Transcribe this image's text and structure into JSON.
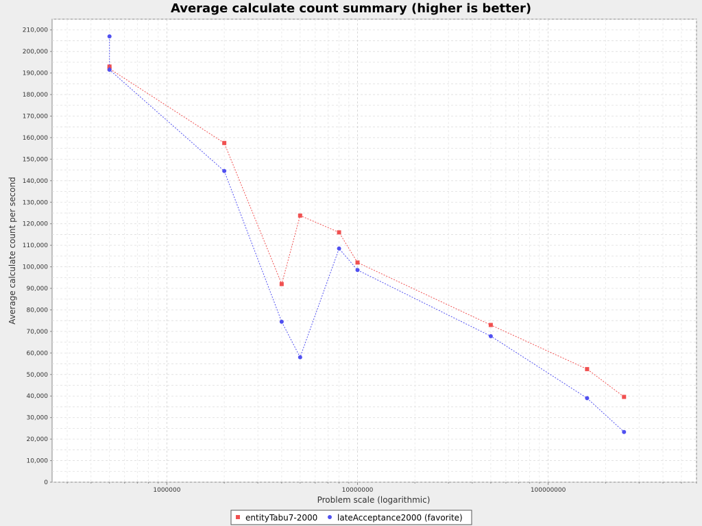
{
  "chart_data": {
    "type": "line",
    "title": "Average calculate count summary (higher is better)",
    "xlabel": "Problem scale (logarithmic)",
    "ylabel": "Average calculate count per second",
    "x_scale": "log",
    "xlim": [
      250000,
      600000000
    ],
    "ylim": [
      0,
      215000
    ],
    "x_ticks": [
      1000000,
      10000000,
      100000000
    ],
    "x_tick_labels": [
      "1000000",
      "10000000",
      "100000000"
    ],
    "y_ticks": [
      0,
      10000,
      20000,
      30000,
      40000,
      50000,
      60000,
      70000,
      80000,
      90000,
      100000,
      110000,
      120000,
      130000,
      140000,
      150000,
      160000,
      170000,
      180000,
      190000,
      200000,
      210000
    ],
    "y_tick_labels": [
      "0",
      "10,000",
      "20,000",
      "30,000",
      "40,000",
      "50,000",
      "60,000",
      "70,000",
      "80,000",
      "90,000",
      "100,000",
      "110,000",
      "120,000",
      "130,000",
      "140,000",
      "150,000",
      "160,000",
      "170,000",
      "180,000",
      "190,000",
      "200,000",
      "210,000"
    ],
    "grid": true,
    "legend_position": "bottom",
    "series": [
      {
        "name": "entityTabu7-2000",
        "color": "#f05050",
        "marker": "square",
        "points": [
          {
            "x": 500000,
            "y": 193000
          },
          {
            "x": 500000,
            "y": 192000
          },
          {
            "x": 2000000,
            "y": 157500
          },
          {
            "x": 4000000,
            "y": 92000
          },
          {
            "x": 5000000,
            "y": 123800
          },
          {
            "x": 8000000,
            "y": 116000
          },
          {
            "x": 10000000,
            "y": 102000
          },
          {
            "x": 50000000,
            "y": 73000
          },
          {
            "x": 160000000,
            "y": 52500
          },
          {
            "x": 250000000,
            "y": 39600
          }
        ]
      },
      {
        "name": "lateAcceptance2000 (favorite)",
        "color": "#5050f0",
        "marker": "circle",
        "points": [
          {
            "x": 500000,
            "y": 207000
          },
          {
            "x": 500000,
            "y": 191500
          },
          {
            "x": 2000000,
            "y": 144500
          },
          {
            "x": 4000000,
            "y": 74500
          },
          {
            "x": 5000000,
            "y": 58000
          },
          {
            "x": 8000000,
            "y": 108500
          },
          {
            "x": 10000000,
            "y": 98500
          },
          {
            "x": 50000000,
            "y": 67800
          },
          {
            "x": 160000000,
            "y": 39000
          },
          {
            "x": 250000000,
            "y": 23300
          }
        ]
      }
    ]
  }
}
